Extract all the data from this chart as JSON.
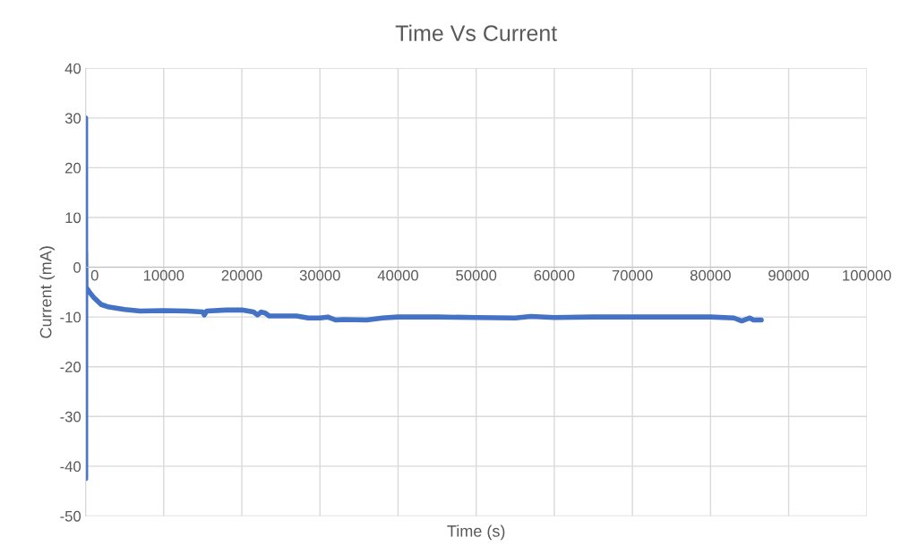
{
  "chart_data": {
    "type": "line",
    "title": "Time Vs Current",
    "xlabel": "Time (s)",
    "ylabel": "Current (mA)",
    "xlim": [
      0,
      100000
    ],
    "xticks": [
      0,
      10000,
      20000,
      30000,
      40000,
      50000,
      60000,
      70000,
      80000,
      90000,
      100000
    ],
    "ylim": [
      -50,
      40
    ],
    "yticks": [
      -50,
      -40,
      -30,
      -20,
      -10,
      0,
      10,
      20,
      30,
      40
    ],
    "grid": true,
    "marker": "none",
    "line_style": "solid",
    "series": [
      {
        "color": "#4472c4",
        "x": [
          0,
          5,
          10,
          20,
          50,
          500,
          1000,
          2000,
          3000,
          5000,
          7000,
          10000,
          13000,
          15000,
          15200,
          15500,
          18000,
          20000,
          21500,
          22000,
          22500,
          23000,
          23500,
          27000,
          28500,
          30000,
          31000,
          32000,
          33000,
          36000,
          38000,
          40000,
          45000,
          50000,
          55000,
          57000,
          60000,
          65000,
          70000,
          75000,
          80000,
          83000,
          84000,
          85000,
          85500,
          86500
        ],
        "values": [
          0,
          30,
          -42.5,
          3,
          -4,
          -5,
          -6,
          -7.5,
          -8,
          -8.5,
          -8.8,
          -8.7,
          -8.8,
          -9.0,
          -9.6,
          -8.8,
          -8.6,
          -8.6,
          -9.0,
          -9.6,
          -9.0,
          -9.2,
          -9.8,
          -9.8,
          -10.2,
          -10.2,
          -10.0,
          -10.6,
          -10.5,
          -10.6,
          -10.2,
          -10.0,
          -10.0,
          -10.1,
          -10.2,
          -9.9,
          -10.1,
          -10.0,
          -10.0,
          -10.0,
          -10.0,
          -10.2,
          -10.8,
          -10.2,
          -10.6,
          -10.6
        ]
      }
    ]
  }
}
